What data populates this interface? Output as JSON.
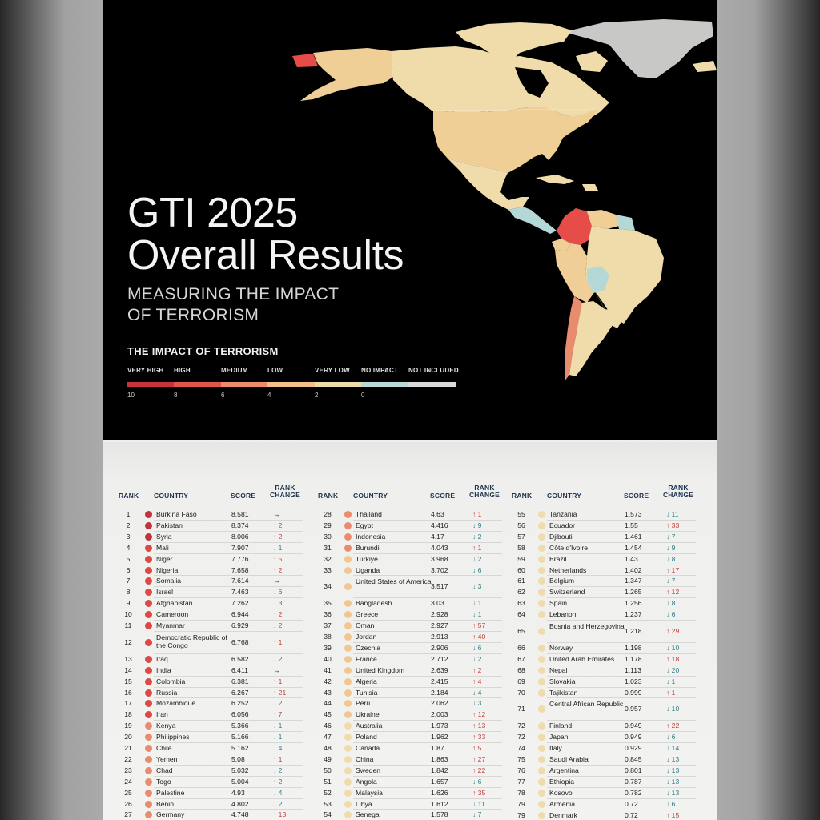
{
  "title": {
    "line1": "GTI 2025",
    "line2": "Overall Results"
  },
  "subtitle": {
    "line1": "MEASURING THE IMPACT",
    "line2": "OF TERRORISM"
  },
  "legend": {
    "title": "THE IMPACT OF TERRORISM",
    "categories": [
      "VERY HIGH",
      "HIGH",
      "MEDIUM",
      "LOW",
      "VERY LOW",
      "NO IMPACT",
      "NOT INCLUDED"
    ],
    "scale_labels": [
      "10",
      "8",
      "6",
      "4",
      "2",
      "0"
    ],
    "colors": [
      "#c8323a",
      "#e0574a",
      "#ee8a6c",
      "#f2bf8a",
      "#eedca6",
      "#b8d9d7",
      "#d9d9d9"
    ]
  },
  "map": {
    "region": "Americas",
    "colors": {
      "very_high": "#e64c48",
      "low": "#efcf97",
      "very_low": "#f0e2ae",
      "no_impact": "#b4d8d6",
      "not_included": "#c8c8c6",
      "background": "#000000"
    }
  },
  "table": {
    "headers": {
      "rank": "RANK",
      "country": "COUNTRY",
      "score": "SCORE",
      "change_line1": "RANK",
      "change_line2": "CHANGE"
    },
    "columns": [
      [
        {
          "rank": "1",
          "country": "Burkina Faso",
          "score": "8.581",
          "change": "↔",
          "level": "very_high"
        },
        {
          "rank": "2",
          "country": "Pakistan",
          "score": "8.374",
          "change": "↑ 2",
          "level": "very_high"
        },
        {
          "rank": "3",
          "country": "Syria",
          "score": "8.006",
          "change": "↑ 2",
          "level": "very_high"
        },
        {
          "rank": "4",
          "country": "Mali",
          "score": "7.907",
          "change": "↓ 1",
          "level": "high"
        },
        {
          "rank": "5",
          "country": "Niger",
          "score": "7.776",
          "change": "↑ 5",
          "level": "high"
        },
        {
          "rank": "6",
          "country": "Nigeria",
          "score": "7.658",
          "change": "↑ 2",
          "level": "high"
        },
        {
          "rank": "7",
          "country": "Somalia",
          "score": "7.614",
          "change": "↔",
          "level": "high"
        },
        {
          "rank": "8",
          "country": "Israel",
          "score": "7.463",
          "change": "↓ 6",
          "level": "high"
        },
        {
          "rank": "9",
          "country": "Afghanistan",
          "score": "7.262",
          "change": "↓ 3",
          "level": "high"
        },
        {
          "rank": "10",
          "country": "Cameroon",
          "score": "6.944",
          "change": "↑ 2",
          "level": "high"
        },
        {
          "rank": "11",
          "country": "Myanmar",
          "score": "6.929",
          "change": "↓ 2",
          "level": "high"
        },
        {
          "rank": "12",
          "country": "Democratic Republic of the Congo",
          "score": "6.768",
          "change": "↑ 1",
          "level": "high",
          "wrap": true
        },
        {
          "rank": "13",
          "country": "Iraq",
          "score": "6.582",
          "change": "↓ 2",
          "level": "high"
        },
        {
          "rank": "14",
          "country": "India",
          "score": "6.411",
          "change": "↔",
          "level": "high"
        },
        {
          "rank": "15",
          "country": "Colombia",
          "score": "6.381",
          "change": "↑ 1",
          "level": "high"
        },
        {
          "rank": "16",
          "country": "Russia",
          "score": "6.267",
          "change": "↑ 21",
          "level": "high"
        },
        {
          "rank": "17",
          "country": "Mozambique",
          "score": "6.252",
          "change": "↓ 2",
          "level": "high"
        },
        {
          "rank": "18",
          "country": "Iran",
          "score": "6.056",
          "change": "↑ 7",
          "level": "high"
        },
        {
          "rank": "19",
          "country": "Kenya",
          "score": "5.366",
          "change": "↓ 1",
          "level": "medium"
        },
        {
          "rank": "20",
          "country": "Philippines",
          "score": "5.166",
          "change": "↓ 1",
          "level": "medium"
        },
        {
          "rank": "21",
          "country": "Chile",
          "score": "5.162",
          "change": "↓ 4",
          "level": "medium"
        },
        {
          "rank": "22",
          "country": "Yemen",
          "score": "5.08",
          "change": "↑ 1",
          "level": "medium"
        },
        {
          "rank": "23",
          "country": "Chad",
          "score": "5.032",
          "change": "↓ 2",
          "level": "medium"
        },
        {
          "rank": "24",
          "country": "Togo",
          "score": "5.004",
          "change": "↑ 2",
          "level": "medium"
        },
        {
          "rank": "25",
          "country": "Palestine",
          "score": "4.93",
          "change": "↓ 4",
          "level": "medium"
        },
        {
          "rank": "26",
          "country": "Benin",
          "score": "4.802",
          "change": "↓ 2",
          "level": "medium"
        },
        {
          "rank": "27",
          "country": "Germany",
          "score": "4.748",
          "change": "↑ 13",
          "level": "medium"
        }
      ],
      [
        {
          "rank": "28",
          "country": "Thailand",
          "score": "4.63",
          "change": "↑ 1",
          "level": "medium"
        },
        {
          "rank": "29",
          "country": "Egypt",
          "score": "4.416",
          "change": "↓ 9",
          "level": "medium"
        },
        {
          "rank": "30",
          "country": "Indonesia",
          "score": "4.17",
          "change": "↓ 2",
          "level": "medium"
        },
        {
          "rank": "31",
          "country": "Burundi",
          "score": "4.043",
          "change": "↑ 1",
          "level": "medium"
        },
        {
          "rank": "32",
          "country": "Turkiye",
          "score": "3.968",
          "change": "↓ 2",
          "level": "low"
        },
        {
          "rank": "33",
          "country": "Uganda",
          "score": "3.702",
          "change": "↓ 6",
          "level": "low"
        },
        {
          "rank": "34",
          "country": "United States of America",
          "score": "3.517",
          "change": "↓ 3",
          "level": "low",
          "wrap": true
        },
        {
          "rank": "35",
          "country": "Bangladesh",
          "score": "3.03",
          "change": "↓ 1",
          "level": "low"
        },
        {
          "rank": "36",
          "country": "Greece",
          "score": "2.928",
          "change": "↓ 1",
          "level": "low"
        },
        {
          "rank": "37",
          "country": "Oman",
          "score": "2.927",
          "change": "↑ 57",
          "level": "low"
        },
        {
          "rank": "38",
          "country": "Jordan",
          "score": "2.913",
          "change": "↑ 40",
          "level": "low"
        },
        {
          "rank": "39",
          "country": "Czechia",
          "score": "2.906",
          "change": "↓ 6",
          "level": "low"
        },
        {
          "rank": "40",
          "country": "France",
          "score": "2.712",
          "change": "↓ 2",
          "level": "low"
        },
        {
          "rank": "41",
          "country": "United Kingdom",
          "score": "2.639",
          "change": "↑ 2",
          "level": "low"
        },
        {
          "rank": "42",
          "country": "Algeria",
          "score": "2.415",
          "change": "↑ 4",
          "level": "low"
        },
        {
          "rank": "43",
          "country": "Tunisia",
          "score": "2.184",
          "change": "↓ 4",
          "level": "low"
        },
        {
          "rank": "44",
          "country": "Peru",
          "score": "2.062",
          "change": "↓ 3",
          "level": "low"
        },
        {
          "rank": "45",
          "country": "Ukraine",
          "score": "2.003",
          "change": "↑ 12",
          "level": "low"
        },
        {
          "rank": "46",
          "country": "Australia",
          "score": "1.973",
          "change": "↑ 13",
          "level": "very_low"
        },
        {
          "rank": "47",
          "country": "Poland",
          "score": "1.962",
          "change": "↑ 33",
          "level": "very_low"
        },
        {
          "rank": "48",
          "country": "Canada",
          "score": "1.87",
          "change": "↑ 5",
          "level": "very_low"
        },
        {
          "rank": "49",
          "country": "China",
          "score": "1.863",
          "change": "↑ 27",
          "level": "very_low"
        },
        {
          "rank": "50",
          "country": "Sweden",
          "score": "1.842",
          "change": "↑ 22",
          "level": "very_low"
        },
        {
          "rank": "51",
          "country": "Angola",
          "score": "1.657",
          "change": "↓ 6",
          "level": "very_low"
        },
        {
          "rank": "52",
          "country": "Malaysia",
          "score": "1.626",
          "change": "↑ 35",
          "level": "very_low"
        },
        {
          "rank": "53",
          "country": "Libya",
          "score": "1.612",
          "change": "↓ 11",
          "level": "very_low"
        },
        {
          "rank": "54",
          "country": "Senegal",
          "score": "1.578",
          "change": "↓ 7",
          "level": "very_low"
        }
      ],
      [
        {
          "rank": "55",
          "country": "Tanzania",
          "score": "1.573",
          "change": "↓ 11",
          "level": "very_low"
        },
        {
          "rank": "56",
          "country": "Ecuador",
          "score": "1.55",
          "change": "↑ 33",
          "level": "very_low"
        },
        {
          "rank": "57",
          "country": "Djibouti",
          "score": "1.461",
          "change": "↓ 7",
          "level": "very_low"
        },
        {
          "rank": "58",
          "country": "Côte d'Ivoire",
          "score": "1.454",
          "change": "↓ 9",
          "level": "very_low"
        },
        {
          "rank": "59",
          "country": "Brazil",
          "score": "1.43",
          "change": "↓ 8",
          "level": "very_low"
        },
        {
          "rank": "60",
          "country": "Netherlands",
          "score": "1.402",
          "change": "↑ 17",
          "level": "very_low"
        },
        {
          "rank": "61",
          "country": "Belgium",
          "score": "1.347",
          "change": "↓ 7",
          "level": "very_low"
        },
        {
          "rank": "62",
          "country": "Switzerland",
          "score": "1.265",
          "change": "↑ 12",
          "level": "very_low"
        },
        {
          "rank": "63",
          "country": "Spain",
          "score": "1.256",
          "change": "↓ 8",
          "level": "very_low"
        },
        {
          "rank": "64",
          "country": "Lebanon",
          "score": "1.237",
          "change": "↓ 6",
          "level": "very_low"
        },
        {
          "rank": "65",
          "country": "Bosnia and Herzegovina",
          "score": "1.218",
          "change": "↑ 29",
          "level": "very_low",
          "wrap": true
        },
        {
          "rank": "66",
          "country": "Norway",
          "score": "1.198",
          "change": "↓ 10",
          "level": "very_low"
        },
        {
          "rank": "67",
          "country": "United Arab Emirates",
          "score": "1.178",
          "change": "↑ 18",
          "level": "very_low"
        },
        {
          "rank": "68",
          "country": "Nepal",
          "score": "1.113",
          "change": "↓ 20",
          "level": "very_low"
        },
        {
          "rank": "69",
          "country": "Slovakia",
          "score": "1.023",
          "change": "↓ 1",
          "level": "very_low"
        },
        {
          "rank": "70",
          "country": "Tajikistan",
          "score": "0.999",
          "change": "↑ 1",
          "level": "very_low"
        },
        {
          "rank": "71",
          "country": "Central African Republic",
          "score": "0.957",
          "change": "↓ 10",
          "level": "very_low",
          "wrap": true
        },
        {
          "rank": "72",
          "country": "Finland",
          "score": "0.949",
          "change": "↑ 22",
          "level": "very_low"
        },
        {
          "rank": "72",
          "country": "Japan",
          "score": "0.949",
          "change": "↓ 6",
          "level": "very_low"
        },
        {
          "rank": "74",
          "country": "Italy",
          "score": "0.929",
          "change": "↓ 14",
          "level": "very_low"
        },
        {
          "rank": "75",
          "country": "Saudi Arabia",
          "score": "0.845",
          "change": "↓ 13",
          "level": "very_low"
        },
        {
          "rank": "76",
          "country": "Argentina",
          "score": "0.801",
          "change": "↓ 13",
          "level": "very_low"
        },
        {
          "rank": "77",
          "country": "Ethiopia",
          "score": "0.787",
          "change": "↓ 13",
          "level": "very_low"
        },
        {
          "rank": "78",
          "country": "Kosovo",
          "score": "0.782",
          "change": "↓ 13",
          "level": "very_low"
        },
        {
          "rank": "79",
          "country": "Armenia",
          "score": "0.72",
          "change": "↓ 6",
          "level": "very_low"
        },
        {
          "rank": "79",
          "country": "Denmark",
          "score": "0.72",
          "change": "↑ 15",
          "level": "very_low"
        }
      ]
    ]
  },
  "level_colors": {
    "very_high": "#c0353d",
    "high": "#dc4a45",
    "medium": "#e98c6e",
    "low": "#f1c78f",
    "very_low": "#efdcaa",
    "up": "#c2403b",
    "down": "#2f7f86",
    "same": "#222222"
  }
}
